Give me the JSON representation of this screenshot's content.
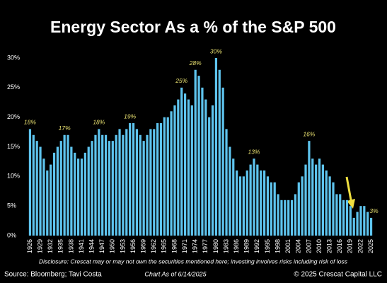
{
  "chart_data": {
    "type": "bar",
    "title": "Energy Sector As a % of the S&P 500",
    "categories": [
      "1926",
      null,
      null,
      "1929",
      null,
      null,
      "1932",
      null,
      null,
      "1935",
      null,
      null,
      "1938",
      null,
      null,
      "1941",
      null,
      null,
      "1944",
      null,
      null,
      "1947",
      null,
      null,
      "1950",
      null,
      null,
      "1953",
      null,
      null,
      "1956",
      null,
      null,
      "1959",
      null,
      null,
      "1962",
      null,
      null,
      "1965",
      null,
      null,
      "1968",
      null,
      null,
      "1971",
      null,
      null,
      "1974",
      null,
      null,
      "1977",
      null,
      null,
      "1980",
      null,
      null,
      "1983",
      null,
      null,
      "1986",
      null,
      null,
      "1989",
      null,
      null,
      "1992",
      null,
      null,
      "1995",
      null,
      null,
      "1998",
      null,
      null,
      "2001",
      null,
      null,
      "2004",
      null,
      null,
      "2007",
      null,
      null,
      "2010",
      null,
      null,
      "2013",
      null,
      null,
      "2016",
      null,
      null,
      "2019",
      null,
      null,
      "2022",
      null,
      null,
      "2025"
    ],
    "values": [
      18,
      17,
      16,
      15,
      13,
      11,
      12,
      14,
      15,
      16,
      17,
      17,
      15,
      14,
      13,
      13,
      14,
      15,
      16,
      17,
      18,
      17,
      17,
      16,
      16,
      17,
      18,
      17,
      18,
      19,
      19,
      18,
      17,
      16,
      17,
      18,
      18,
      19,
      19,
      20,
      20,
      21,
      22,
      23,
      25,
      24,
      23,
      22,
      28,
      27,
      25,
      23,
      20,
      22,
      30,
      28,
      25,
      18,
      15,
      13,
      11,
      10,
      10,
      11,
      12,
      13,
      12,
      11,
      11,
      10,
      9,
      9,
      7,
      6,
      6,
      6,
      6,
      7,
      9,
      10,
      12,
      16,
      13,
      12,
      13,
      12,
      11,
      10,
      9,
      7,
      7,
      6,
      6,
      5,
      3,
      4,
      5,
      5,
      4,
      3
    ],
    "value_labels": [
      "18%",
      null,
      null,
      null,
      null,
      null,
      null,
      null,
      null,
      null,
      "17%",
      null,
      null,
      null,
      null,
      null,
      null,
      null,
      null,
      null,
      "18%",
      null,
      null,
      null,
      null,
      null,
      null,
      null,
      null,
      "19%",
      null,
      null,
      null,
      null,
      null,
      null,
      null,
      null,
      null,
      null,
      null,
      null,
      null,
      null,
      "25%",
      null,
      null,
      null,
      "28%",
      null,
      null,
      null,
      null,
      null,
      "30%",
      null,
      null,
      null,
      null,
      null,
      null,
      null,
      null,
      null,
      null,
      "13%",
      null,
      null,
      null,
      null,
      null,
      null,
      null,
      null,
      null,
      null,
      null,
      null,
      null,
      null,
      null,
      "16%",
      null,
      null,
      null,
      null,
      null,
      null,
      null,
      null,
      null,
      null,
      null,
      null,
      null,
      null,
      null,
      null,
      null,
      "3%"
    ],
    "color": "#5ec4ee",
    "ylim": [
      0,
      30
    ],
    "yticks": [
      {
        "value": 0,
        "label": "0%"
      },
      {
        "value": 5,
        "label": "5%"
      },
      {
        "value": 10,
        "label": "10%"
      },
      {
        "value": 15,
        "label": "15%"
      },
      {
        "value": 20,
        "label": "20%"
      },
      {
        "value": 25,
        "label": "25%"
      },
      {
        "value": 30,
        "label": "30%"
      }
    ],
    "disclosure": "Disclosure: Crescat may or may not own the securities mentioned here; investing involves risks including risk of loss",
    "source": "Source: Bloomberg; Tavi Costa",
    "date_note": "Chart As of 6/14/2025",
    "copyright": "© 2025 Crescat Capital LLC"
  }
}
